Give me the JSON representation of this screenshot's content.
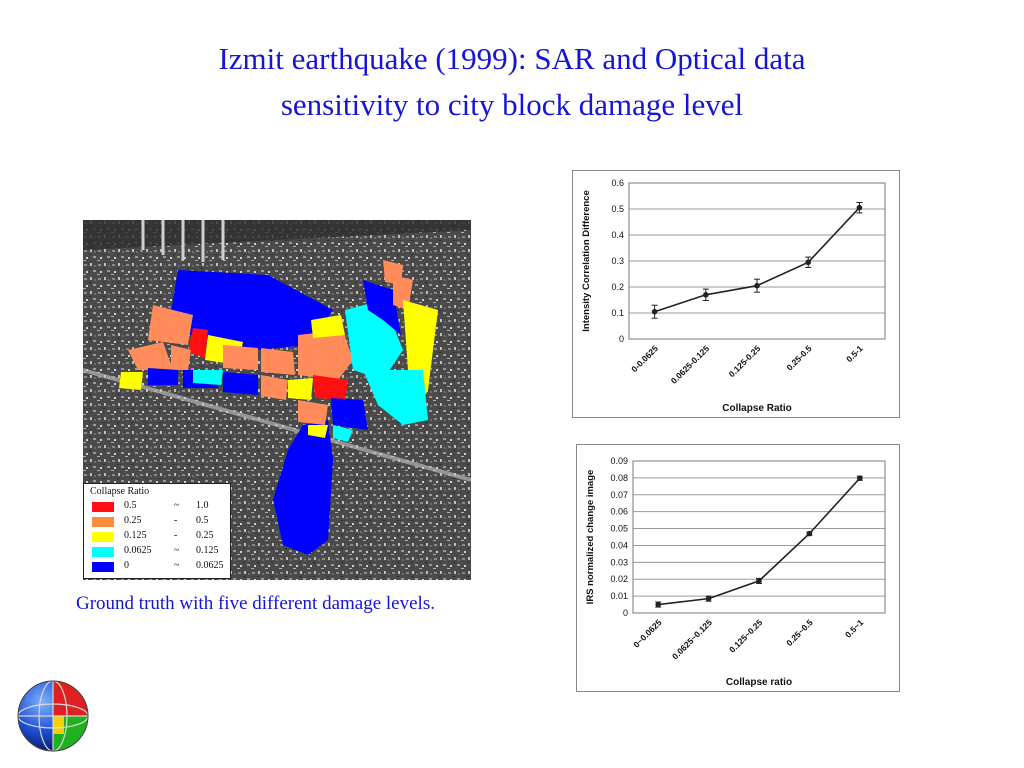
{
  "title": {
    "line1": "Izmit earthquake (1999): SAR and Optical data",
    "line2": "sensitivity to city block damage level"
  },
  "caption": "Ground truth with five different damage levels.",
  "map": {
    "legend": {
      "title": "Collapse Ratio",
      "rows": [
        {
          "lo": "0.5",
          "sep": "~",
          "hi": "1.0",
          "color": "#ff1010"
        },
        {
          "lo": "0.25",
          "sep": "-",
          "hi": "0.5",
          "color": "#ff8c3a"
        },
        {
          "lo": "0.125",
          "sep": "-",
          "hi": "0.25",
          "color": "#ffff00"
        },
        {
          "lo": "0.0625",
          "sep": "~",
          "hi": "0.125",
          "color": "#00ffff"
        },
        {
          "lo": "0",
          "sep": "~",
          "hi": "0.0625",
          "color": "#0000ff"
        }
      ]
    }
  },
  "chart_data": [
    {
      "type": "line",
      "categories": [
        "0-0.0625",
        "0.0625-0.125",
        "0.125-0.25",
        "0.25-0.5",
        "0.5-1"
      ],
      "values": [
        0.105,
        0.17,
        0.205,
        0.295,
        0.505
      ],
      "errors": [
        0.025,
        0.022,
        0.025,
        0.02,
        0.02
      ],
      "title": "",
      "xlabel": "Collapse Ratio",
      "ylabel": "Intensity Correlation Difference",
      "ylim": [
        0,
        0.6
      ],
      "ytick_labels": [
        "0",
        "0.1",
        "0.2",
        "0.3",
        "0.4",
        "0.5",
        "0.6"
      ],
      "grid": true,
      "legend": "none"
    },
    {
      "type": "line",
      "categories": [
        "0~0.0625",
        "0.0625~0.125",
        "0.125~0.25",
        "0.25~0.5",
        "0.5~1"
      ],
      "values": [
        0.005,
        0.0085,
        0.019,
        0.047,
        0.0798
      ],
      "errors": [
        0.0015,
        0.0015,
        0.0015,
        0.001,
        0.0012
      ],
      "title": "",
      "xlabel": "Collapse ratio",
      "ylabel": "IRS normalized change image",
      "ylim": [
        0,
        0.09
      ],
      "ytick_labels": [
        "0",
        "0.01",
        "0.02",
        "0.03",
        "0.04",
        "0.05",
        "0.06",
        "0.07",
        "0.08",
        "0.09"
      ],
      "grid": true,
      "legend": "none"
    }
  ]
}
